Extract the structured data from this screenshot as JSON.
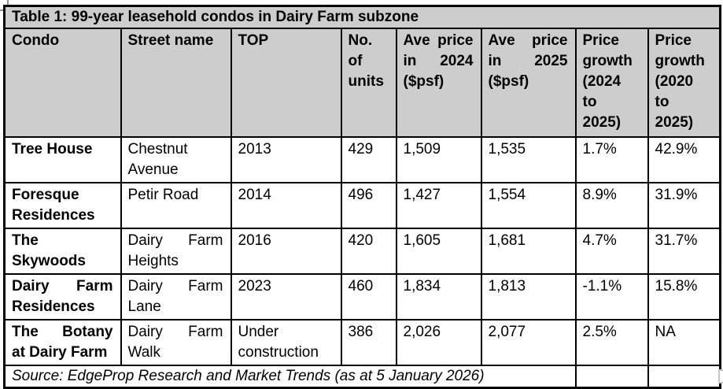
{
  "colors": {
    "header_background": "#cdcdcd",
    "table_border": "#000000",
    "handle_gray": "#8f8f8f"
  },
  "table": {
    "title": "Table 1: 99-year leasehold condos in Dairy Farm subzone",
    "columns": [
      {
        "label": "Condo",
        "lines": [
          {
            "t": "Condo"
          }
        ]
      },
      {
        "label": "Street name",
        "lines": [
          {
            "t": "Street name"
          }
        ]
      },
      {
        "label": "TOP",
        "lines": [
          {
            "t": "TOP"
          }
        ]
      },
      {
        "label": "No. of units",
        "lines": [
          {
            "t": "No."
          },
          {
            "t": "of"
          },
          {
            "t": "units"
          }
        ]
      },
      {
        "label": "Ave price in 2024 ($psf)",
        "lines": [
          {
            "t": "Ave price",
            "j": true
          },
          {
            "t": "in 2024",
            "j": true
          },
          {
            "t": "($psf)"
          }
        ]
      },
      {
        "label": "Ave price in 2025 ($psf)",
        "lines": [
          {
            "t": "Ave price",
            "j": true
          },
          {
            "t": "in 2025",
            "j": true
          },
          {
            "t": "($psf)"
          }
        ]
      },
      {
        "label": "Price growth (2024 to 2025)",
        "lines": [
          {
            "t": "Price"
          },
          {
            "t": "growth"
          },
          {
            "t": "(2024"
          },
          {
            "t": "to"
          },
          {
            "t": "2025)"
          }
        ]
      },
      {
        "label": "Price growth (2020 to 2025)",
        "lines": [
          {
            "t": "Price"
          },
          {
            "t": "growth"
          },
          {
            "t": "(2020"
          },
          {
            "t": "to"
          },
          {
            "t": "2025)"
          }
        ]
      }
    ],
    "rows": [
      {
        "cells": [
          {
            "lines": [
              {
                "t": "Tree House"
              }
            ]
          },
          {
            "lines": [
              {
                "t": "Chestnut"
              },
              {
                "t": "Avenue"
              }
            ]
          },
          {
            "lines": [
              {
                "t": "2013"
              }
            ]
          },
          {
            "lines": [
              {
                "t": "429"
              }
            ]
          },
          {
            "lines": [
              {
                "t": "1,509"
              }
            ]
          },
          {
            "lines": [
              {
                "t": "1,535"
              }
            ]
          },
          {
            "lines": [
              {
                "t": "1.7%"
              }
            ]
          },
          {
            "lines": [
              {
                "t": "42.9%"
              }
            ]
          }
        ]
      },
      {
        "cells": [
          {
            "lines": [
              {
                "t": "Foresque"
              },
              {
                "t": "Residences"
              }
            ]
          },
          {
            "lines": [
              {
                "t": "Petir Road"
              }
            ]
          },
          {
            "lines": [
              {
                "t": "2014"
              }
            ]
          },
          {
            "lines": [
              {
                "t": "496"
              }
            ]
          },
          {
            "lines": [
              {
                "t": "1,427"
              }
            ]
          },
          {
            "lines": [
              {
                "t": "1,554"
              }
            ]
          },
          {
            "lines": [
              {
                "t": "8.9%"
              }
            ]
          },
          {
            "lines": [
              {
                "t": "31.9%"
              }
            ]
          }
        ]
      },
      {
        "cells": [
          {
            "lines": [
              {
                "t": "The"
              },
              {
                "t": "Skywoods"
              }
            ]
          },
          {
            "lines": [
              {
                "t": "Dairy Farm",
                "j": true
              },
              {
                "t": "Heights"
              }
            ]
          },
          {
            "lines": [
              {
                "t": "2016"
              }
            ]
          },
          {
            "lines": [
              {
                "t": "420"
              }
            ]
          },
          {
            "lines": [
              {
                "t": "1,605"
              }
            ]
          },
          {
            "lines": [
              {
                "t": "1,681"
              }
            ]
          },
          {
            "lines": [
              {
                "t": "4.7%"
              }
            ]
          },
          {
            "lines": [
              {
                "t": "31.7%"
              }
            ]
          }
        ]
      },
      {
        "cells": [
          {
            "lines": [
              {
                "t": "Dairy Farm",
                "j": true
              },
              {
                "t": "Residences"
              }
            ]
          },
          {
            "lines": [
              {
                "t": "Dairy Farm",
                "j": true
              },
              {
                "t": "Lane"
              }
            ]
          },
          {
            "lines": [
              {
                "t": "2023"
              }
            ]
          },
          {
            "lines": [
              {
                "t": "460"
              }
            ]
          },
          {
            "lines": [
              {
                "t": "1,834"
              }
            ]
          },
          {
            "lines": [
              {
                "t": "1,813"
              }
            ]
          },
          {
            "lines": [
              {
                "t": "-1.1%"
              }
            ]
          },
          {
            "lines": [
              {
                "t": "15.8%"
              }
            ]
          }
        ]
      },
      {
        "cells": [
          {
            "lines": [
              {
                "t": "The Botany",
                "j": true
              },
              {
                "t": "at Dairy Farm"
              }
            ]
          },
          {
            "lines": [
              {
                "t": "Dairy Farm",
                "j": true
              },
              {
                "t": "Walk"
              }
            ]
          },
          {
            "lines": [
              {
                "t": "Under"
              },
              {
                "t": "construction"
              }
            ]
          },
          {
            "lines": [
              {
                "t": "386"
              }
            ]
          },
          {
            "lines": [
              {
                "t": "2,026"
              }
            ]
          },
          {
            "lines": [
              {
                "t": "2,077"
              }
            ]
          },
          {
            "lines": [
              {
                "t": "2.5%"
              }
            ]
          },
          {
            "lines": [
              {
                "t": "NA"
              }
            ]
          }
        ]
      }
    ],
    "source_note": "Source: EdgeProp Research and Market Trends (as at 5 January 2026)"
  }
}
